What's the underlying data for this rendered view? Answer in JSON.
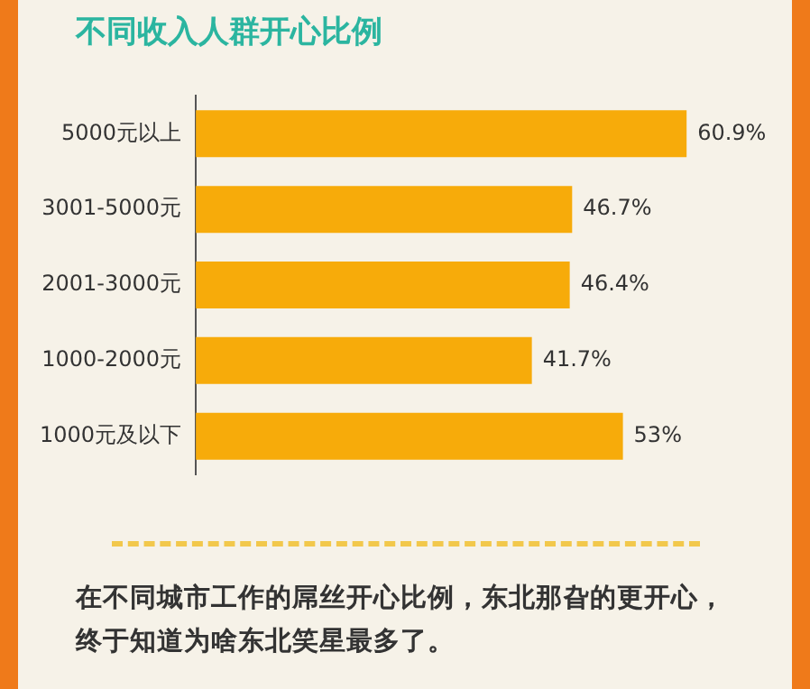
{
  "chart_data": {
    "type": "bar",
    "orientation": "horizontal",
    "title": "不同收入人群开心比例",
    "categories": [
      "5000元以上",
      "3001-5000元",
      "2001-3000元",
      "1000-2000元",
      "1000元及以下"
    ],
    "values": [
      60.9,
      46.7,
      46.4,
      41.7,
      53
    ],
    "value_labels": [
      "60.9%",
      "46.7%",
      "46.4%",
      "41.7%",
      "53%"
    ],
    "color": "#f7ab0a",
    "annotations": [
      "在不同城市工作的屌丝开心比例，东北那旮的更开心，终于知道为啥东北笑星最多了。"
    ]
  }
}
